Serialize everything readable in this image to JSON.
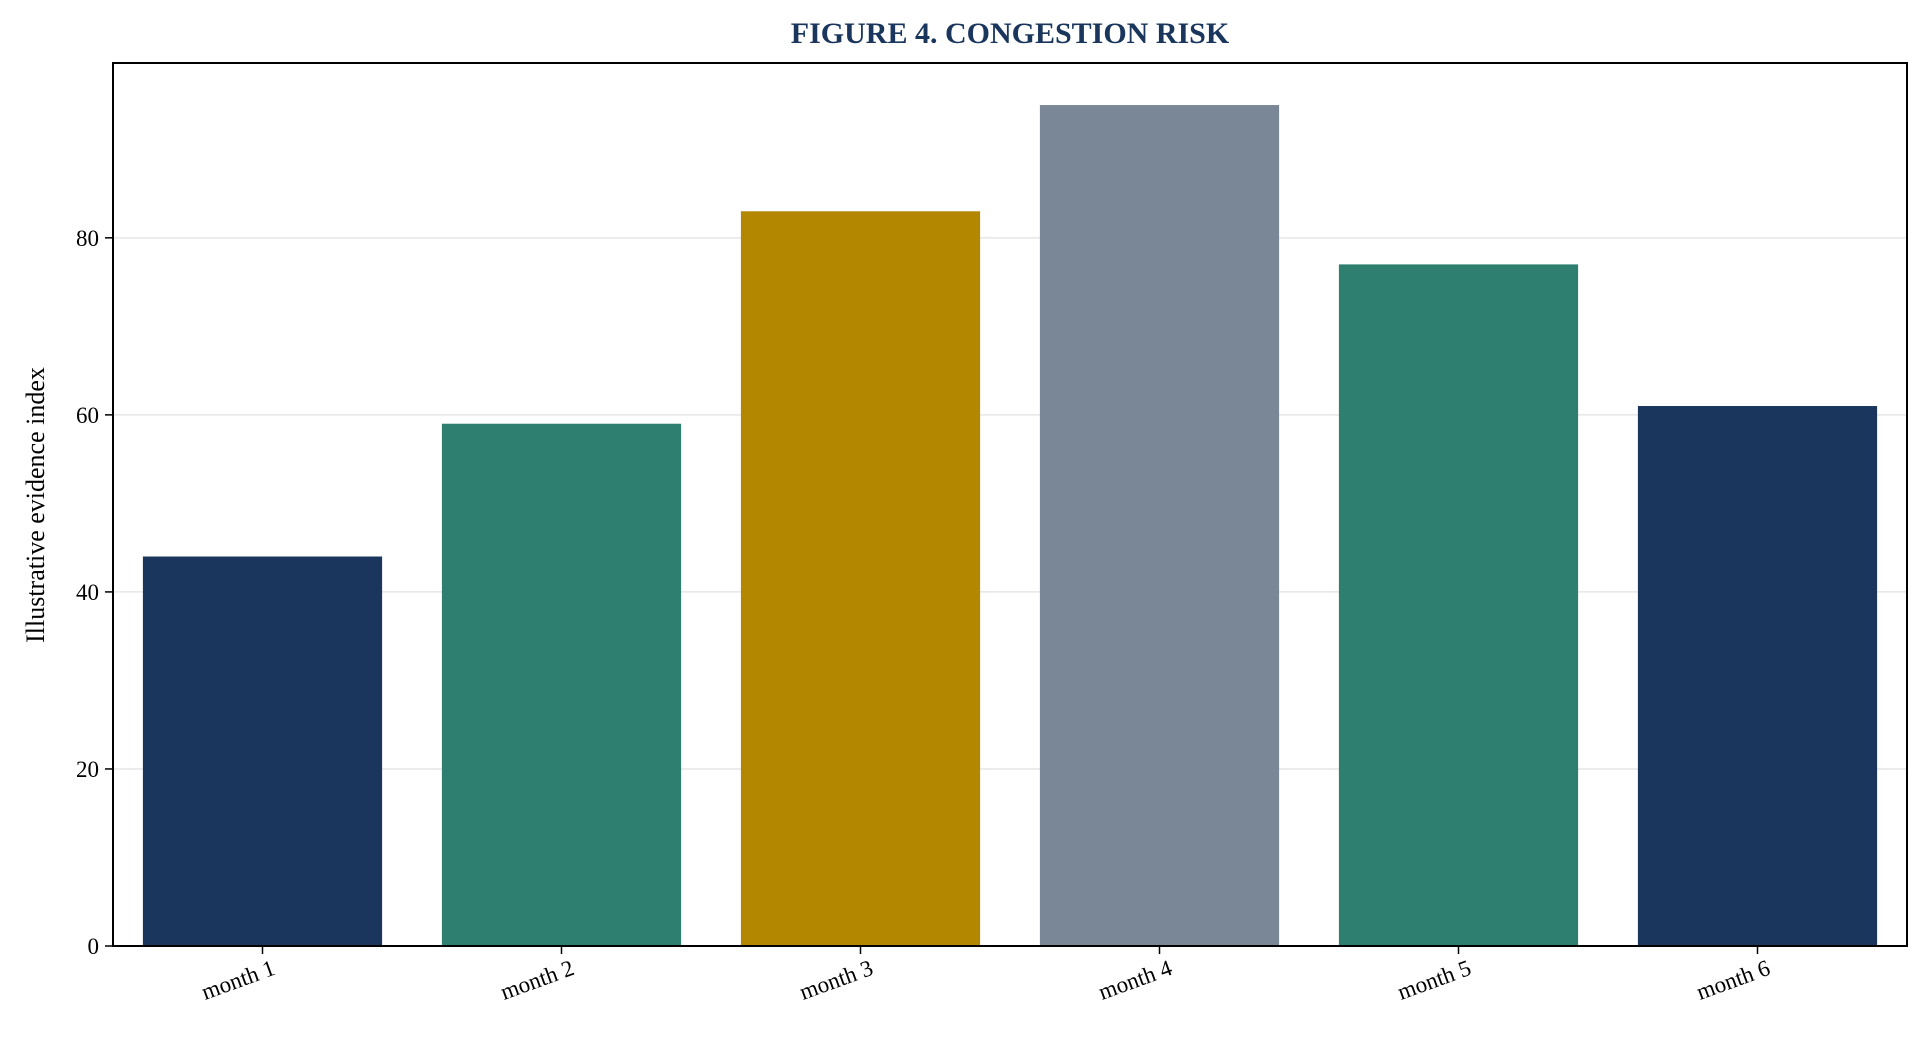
{
  "chart_data": {
    "type": "bar",
    "title": "FIGURE 4. CONGESTION RISK",
    "xlabel": "",
    "ylabel": "Illustrative evidence index",
    "categories": [
      "month 1",
      "month 2",
      "month 3",
      "month 4",
      "month 5",
      "month 6"
    ],
    "values": [
      44,
      59,
      83,
      95,
      77,
      61
    ],
    "bar_colors": [
      "#1a365d",
      "#2e7f70",
      "#b38800",
      "#7a8796",
      "#2e7f70",
      "#1a365d"
    ],
    "title_color": "#1a365d",
    "ylim": [
      0,
      99.75
    ],
    "yticks": [
      0,
      20,
      40,
      60,
      80
    ],
    "grid": "horizontal, light gray",
    "legend": "none"
  }
}
